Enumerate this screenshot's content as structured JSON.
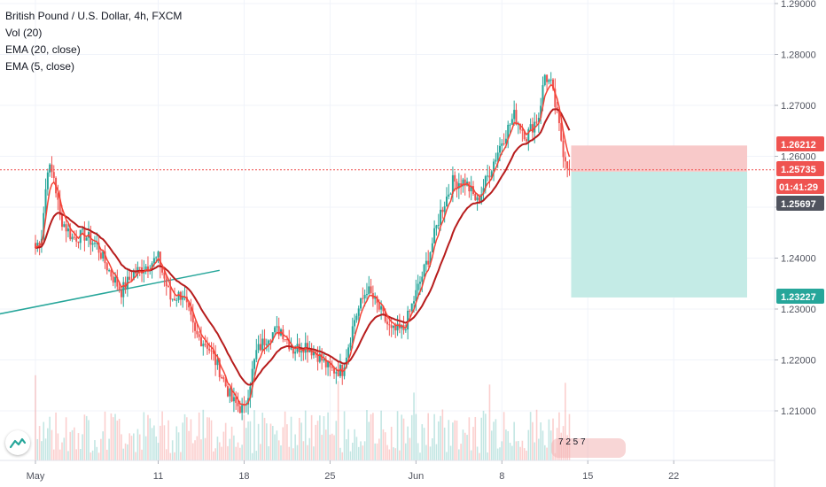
{
  "legend": {
    "title": "British Pound / U.S. Dollar, 4h, FXCM",
    "vol": "Vol (20)",
    "ema20": "EMA (20, close)",
    "ema5": "EMA (5, close)"
  },
  "colors": {
    "bull": "#26a69a",
    "bear": "#ef5350",
    "ema20": "#b71c1c",
    "ema5": "#f44336",
    "trendline": "#26a69a",
    "stop_zone": "#f8c9c9",
    "target_zone": "#c4ebe6",
    "current_tag": "#ef5350",
    "countdown_tag": "#ef5350",
    "entry_tag": "#50535e",
    "target_tag": "#26a69a",
    "stop_tag": "#ef5350"
  },
  "tags": {
    "stop": "1.26212",
    "current": "1.25735",
    "countdown": "01:41:29",
    "entry": "1.25697",
    "target": "1.23227"
  },
  "future_labels": "7  2  5  7",
  "chart_data": {
    "type": "candlestick",
    "symbol": "GBPUSD",
    "timeframe": "4h",
    "y_axis": {
      "ticks": [
        "1.29000",
        "1.28000",
        "1.27000",
        "1.26000",
        "1.25000",
        "1.24000",
        "1.23000",
        "1.22000",
        "1.21000"
      ],
      "ylim": [
        1.2005,
        1.2905
      ]
    },
    "x_axis": {
      "ticks": [
        "May",
        "11",
        "18",
        "25",
        "Jun",
        "8",
        "15",
        "22"
      ]
    },
    "price_path": [
      [
        "May 1",
        1.242
      ],
      [
        "May 1",
        1.2445
      ],
      [
        "May 2",
        1.258
      ],
      [
        "May 2",
        1.256
      ],
      [
        "May 3",
        1.248
      ],
      [
        "May 4",
        1.244
      ],
      [
        "May 5",
        1.2445
      ],
      [
        "May 6",
        1.2425
      ],
      [
        "May 7",
        1.2375
      ],
      [
        "May 8",
        1.2335
      ],
      [
        "May 9",
        1.237
      ],
      [
        "May 10",
        1.2385
      ],
      [
        "May 11",
        1.24
      ],
      [
        "May 11",
        1.236
      ],
      [
        "May 12",
        1.232
      ],
      [
        "May 13",
        1.233
      ],
      [
        "May 14",
        1.225
      ],
      [
        "May 15",
        1.223
      ],
      [
        "May 16",
        1.218
      ],
      [
        "May 17",
        1.212
      ],
      [
        "May 18",
        1.21
      ],
      [
        "May 19",
        1.2215
      ],
      [
        "May 20",
        1.225
      ],
      [
        "May 21",
        1.226
      ],
      [
        "May 22",
        1.222
      ],
      [
        "May 23",
        1.223
      ],
      [
        "May 24",
        1.221
      ],
      [
        "May 25",
        1.218
      ],
      [
        "May 26",
        1.218
      ],
      [
        "May 27",
        1.228
      ],
      [
        "May 28",
        1.234
      ],
      [
        "May 29",
        1.23
      ],
      [
        "May 30",
        1.2255
      ],
      [
        "May 31",
        1.226
      ],
      [
        "Jun 1",
        1.233
      ],
      [
        "Jun 2",
        1.24
      ],
      [
        "Jun 3",
        1.249
      ],
      [
        "Jun 4",
        1.255
      ],
      [
        "Jun 5",
        1.255
      ],
      [
        "Jun 6",
        1.251
      ],
      [
        "Jun 7",
        1.257
      ],
      [
        "Jun 8",
        1.263
      ],
      [
        "Jun 9",
        1.268
      ],
      [
        "Jun 10",
        1.264
      ],
      [
        "Jun 11",
        1.268
      ],
      [
        "Jun 11",
        1.276
      ],
      [
        "Jun 12",
        1.274
      ],
      [
        "Jun 12",
        1.268
      ],
      [
        "Jun 13",
        1.261
      ],
      [
        "Jun 13",
        1.2574
      ]
    ],
    "last_price": 1.25735,
    "position": {
      "type": "short",
      "entry": 1.25697,
      "stop": 1.26212,
      "target": 1.23227
    },
    "trendline": {
      "from": [
        "Apr 28",
        1.229
      ],
      "to": [
        "May 16",
        1.2376
      ]
    }
  }
}
